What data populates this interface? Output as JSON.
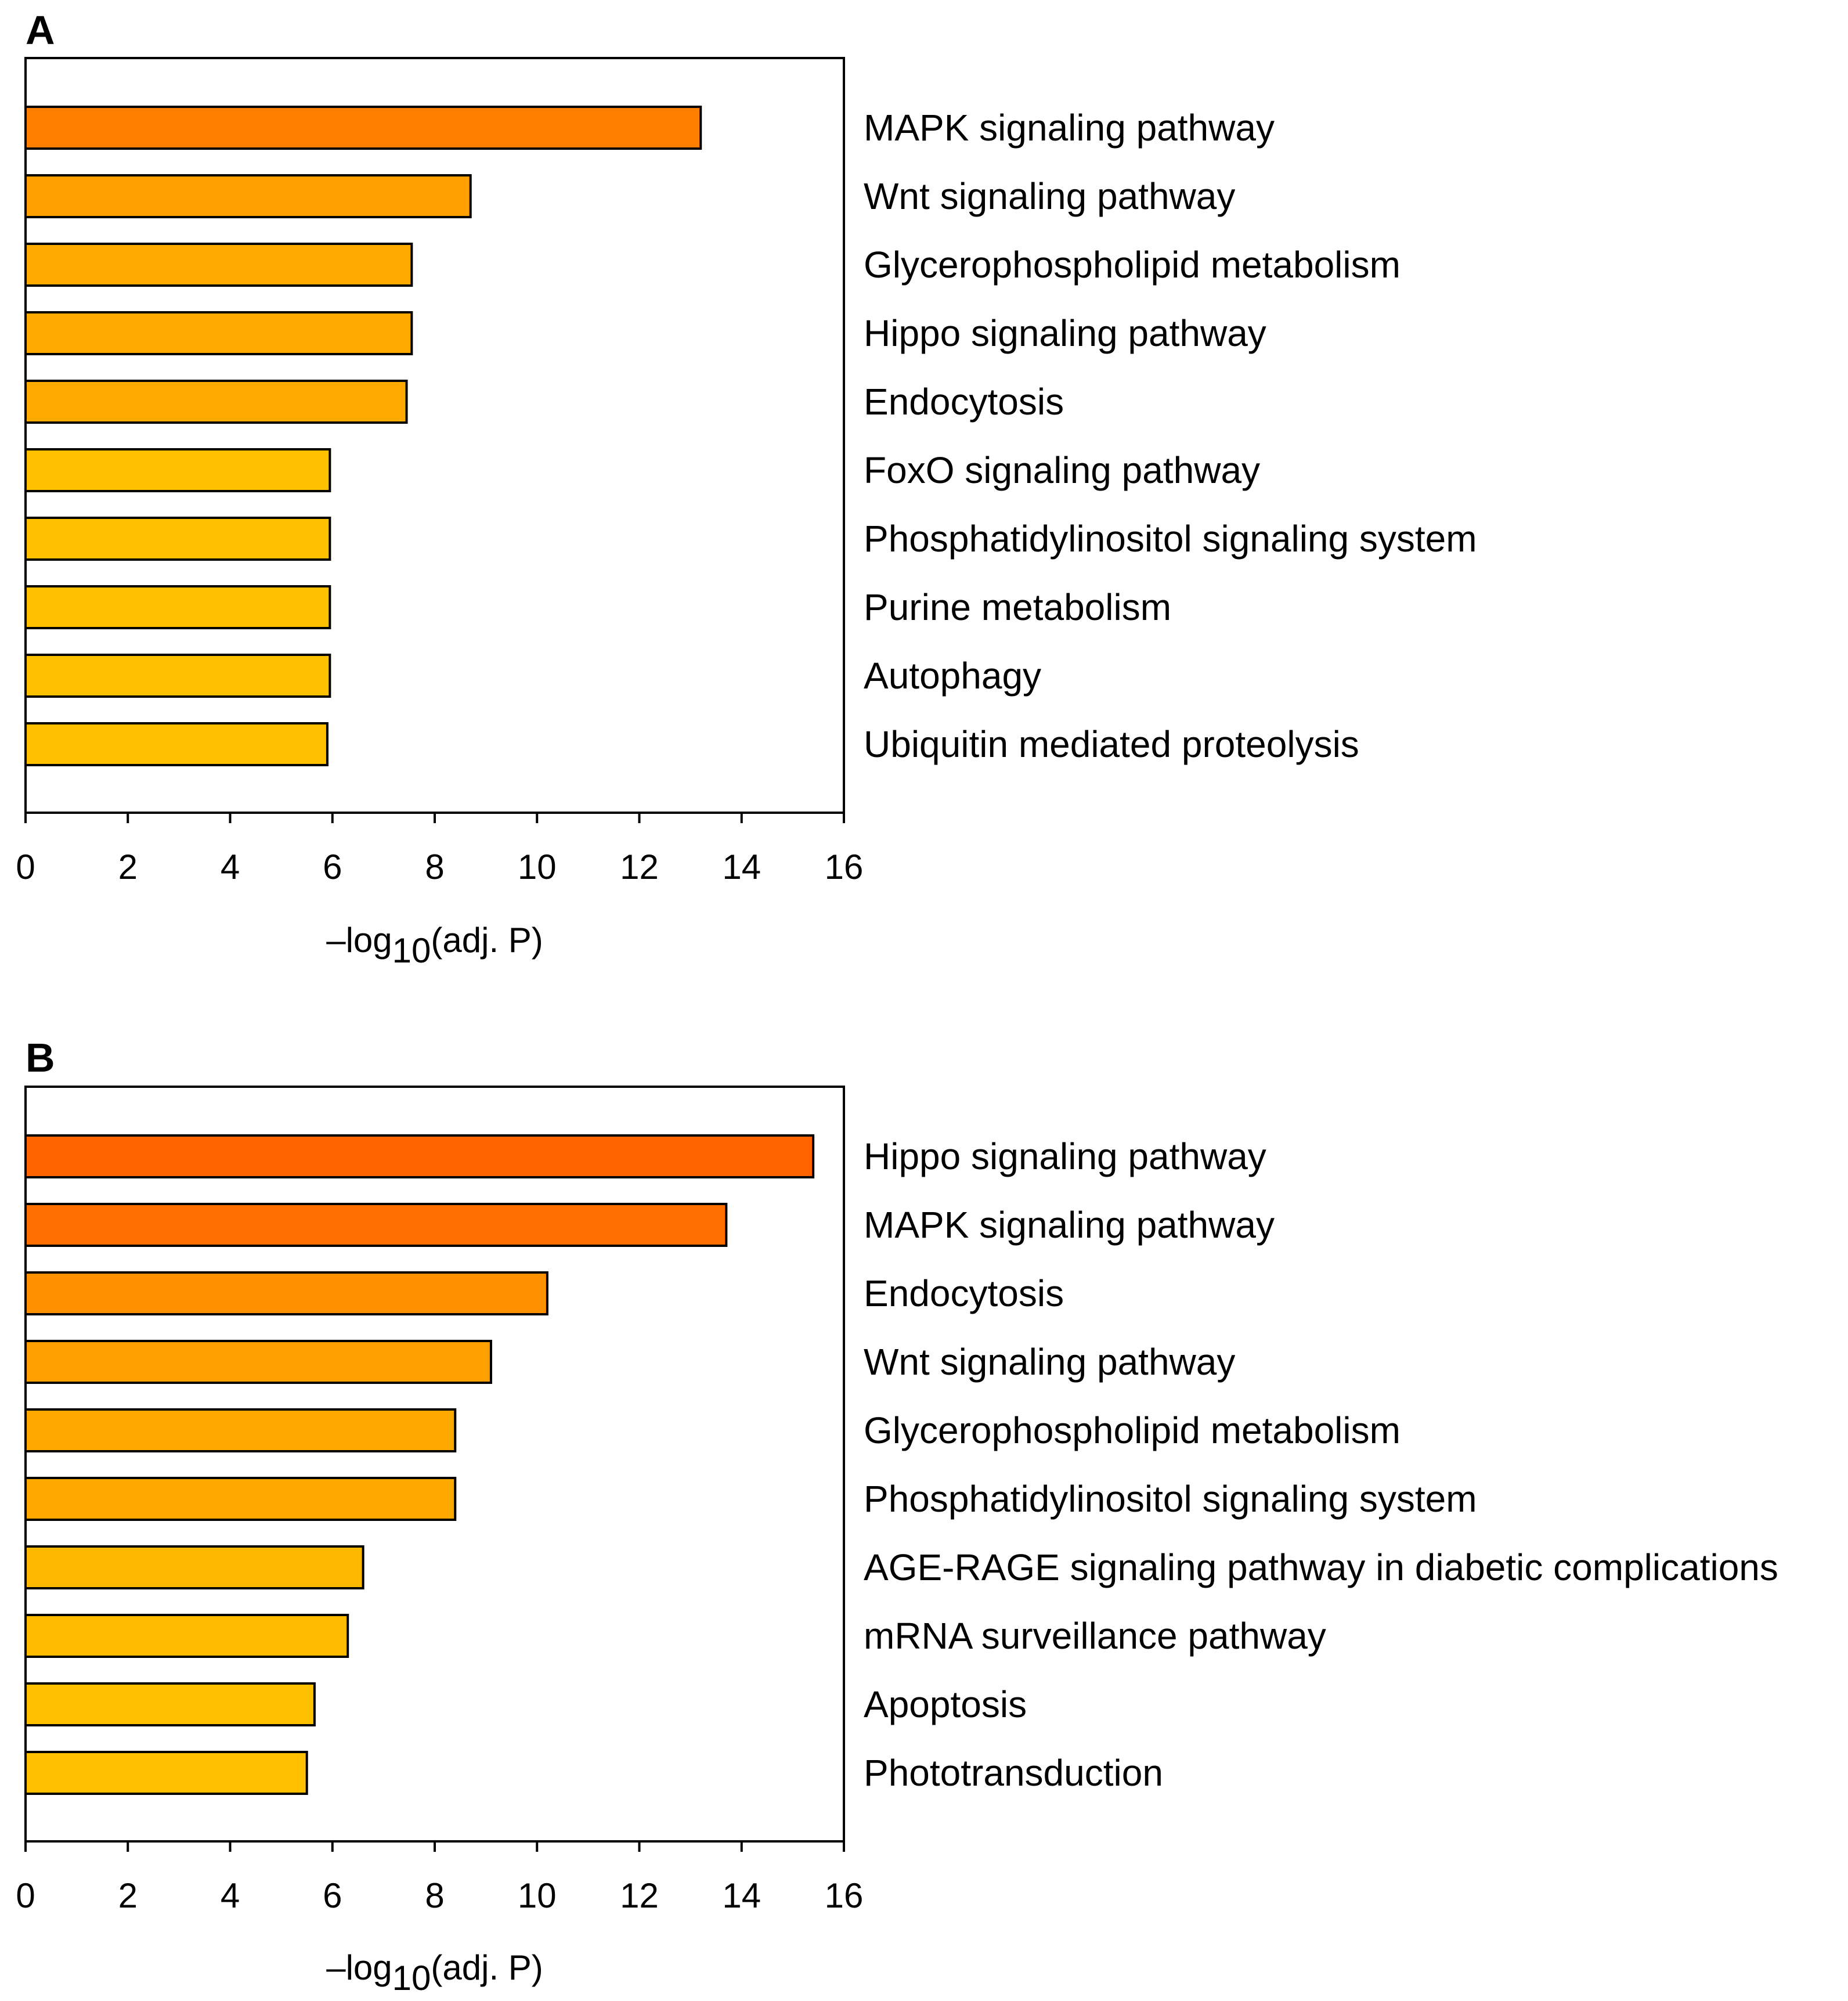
{
  "chart_data": [
    {
      "type": "bar",
      "orientation": "horizontal",
      "panel_label": "A",
      "categories": [
        "MAPK signaling pathway",
        "Wnt signaling pathway",
        "Glycerophospholipid metabolism",
        "Hippo signaling pathway",
        "Endocytosis",
        "FoxO signaling pathway",
        "Phosphatidylinositol signaling system",
        "Purine metabolism",
        "Autophagy",
        "Ubiquitin mediated proteolysis"
      ],
      "values": [
        13.2,
        8.7,
        7.55,
        7.55,
        7.45,
        5.95,
        5.95,
        5.95,
        5.95,
        5.9
      ],
      "bar_colors": [
        "#FF7F00",
        "#FFA000",
        "#FFAA00",
        "#FFAA00",
        "#FFAA00",
        "#FFC000",
        "#FFC000",
        "#FFC000",
        "#FFC000",
        "#FFC000"
      ],
      "xlim": [
        0,
        16
      ],
      "xticks": [
        "0",
        "2",
        "4",
        "6",
        "8",
        "10",
        "12",
        "14",
        "16"
      ],
      "xlabel_prefix": "–log",
      "xlabel_sub": "10",
      "xlabel_suffix": "(adj. P)",
      "grid": false,
      "legend": "none"
    },
    {
      "type": "bar",
      "orientation": "horizontal",
      "panel_label": "B",
      "categories": [
        "Hippo signaling pathway",
        "MAPK signaling pathway",
        "Endocytosis",
        "Wnt signaling pathway",
        "Glycerophospholipid metabolism",
        "Phosphatidylinositol signaling system",
        "AGE-RAGE signaling pathway in diabetic complications",
        "mRNA surveillance pathway",
        "Apoptosis",
        "Phototransduction"
      ],
      "values": [
        15.4,
        13.7,
        10.2,
        9.1,
        8.4,
        8.4,
        6.6,
        6.3,
        5.65,
        5.5
      ],
      "bar_colors": [
        "#FF6400",
        "#FF7000",
        "#FF9000",
        "#FFA000",
        "#FFA800",
        "#FFA800",
        "#FFB800",
        "#FFBC00",
        "#FFC000",
        "#FFC000"
      ],
      "xlim": [
        0,
        16
      ],
      "xticks": [
        "0",
        "2",
        "4",
        "6",
        "8",
        "10",
        "12",
        "14",
        "16"
      ],
      "xlabel_prefix": "–log",
      "xlabel_sub": "10",
      "xlabel_suffix": "(adj. P)",
      "grid": false,
      "legend": "none"
    }
  ]
}
